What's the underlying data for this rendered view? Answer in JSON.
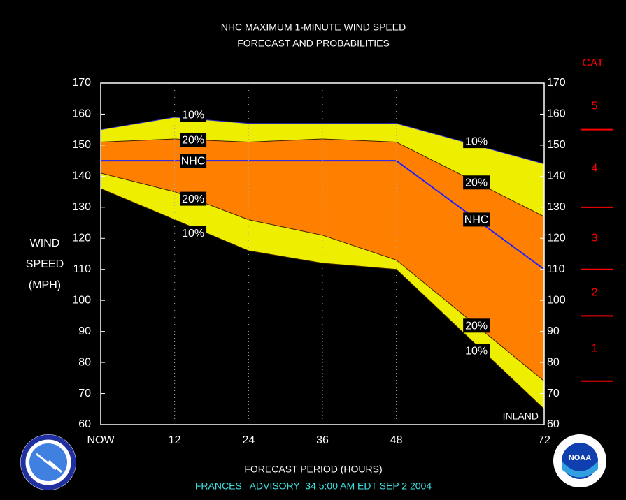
{
  "chart_data": {
    "type": "area",
    "title": "NHC MAXIMUM 1-MINUTE WIND SPEED",
    "subtitle": "FORECAST AND PROBABILITIES",
    "y_label": [
      "WIND",
      "SPEED",
      "(MPH)"
    ],
    "x_label": "FORECAST PERIOD (HOURS)",
    "footer": "FRANCES   ADVISORY  34 5:00 AM EDT SEP 2 2004",
    "annotation": "INLAND",
    "x": [
      0,
      12,
      24,
      36,
      48,
      72
    ],
    "series": [
      {
        "name": "10%",
        "color": "#3030d0",
        "values": [
          155,
          159,
          157,
          157,
          157,
          144
        ]
      },
      {
        "name": "20%",
        "color": "#402000",
        "values": [
          151,
          152,
          151,
          152,
          151,
          127
        ]
      },
      {
        "name": "NHC",
        "color": "#2020ff",
        "values": [
          145,
          145,
          145,
          145,
          145,
          110
        ]
      },
      {
        "name": "20%",
        "color": "#402000",
        "values": [
          141,
          135,
          126,
          121,
          113,
          74
        ]
      },
      {
        "name": "10%",
        "color": "#402000",
        "values": [
          136,
          126,
          116,
          112,
          110,
          65
        ]
      }
    ],
    "band_colors": [
      "#eeee00",
      "#ff8000"
    ],
    "xlim": [
      0,
      72
    ],
    "xticks": [
      {
        "value": 0,
        "label": "NOW"
      },
      12,
      24,
      36,
      48,
      72
    ],
    "ylim": [
      60,
      170
    ],
    "yticks": [
      60,
      70,
      80,
      90,
      100,
      110,
      120,
      130,
      140,
      150,
      160,
      170
    ],
    "grid": true,
    "category_scale": {
      "title": "CAT.",
      "color": "#ff0000",
      "thresholds": [
        74,
        95,
        110,
        130,
        155
      ],
      "labels": [
        "1",
        "2",
        "3",
        "4",
        "5"
      ]
    }
  },
  "logos": {
    "noaa": "NOAA"
  }
}
